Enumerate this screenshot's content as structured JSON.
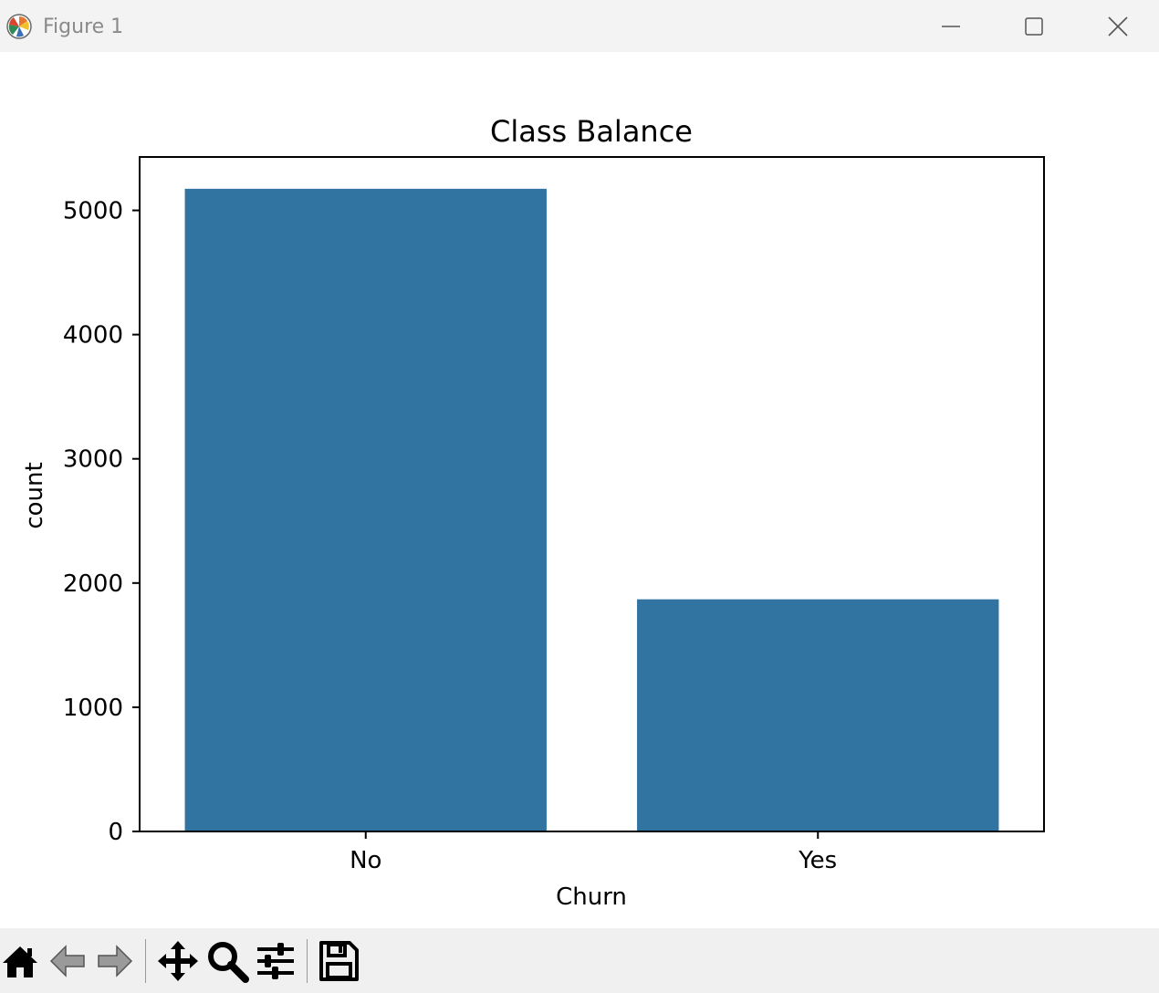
{
  "window": {
    "title": "Figure 1"
  },
  "toolbar": {
    "tools": [
      "home-icon",
      "back-arrow-icon",
      "forward-arrow-icon",
      "pan-icon",
      "zoom-icon",
      "configure-subplots-icon",
      "save-icon"
    ]
  },
  "colors": {
    "bar": "#3274a1",
    "titlebar": "#f3f3f3",
    "toolbar": "#f0f0f0"
  },
  "chart_data": {
    "type": "bar",
    "title": "Class Balance",
    "xlabel": "Churn",
    "ylabel": "count",
    "categories": [
      "No",
      "Yes"
    ],
    "values": [
      5174,
      1869
    ],
    "ylim": [
      0,
      5430
    ],
    "yticks": [
      0,
      1000,
      2000,
      3000,
      4000,
      5000
    ],
    "ytick_labels": [
      "0",
      "1000",
      "2000",
      "3000",
      "4000",
      "5000"
    ],
    "grid": false,
    "legend": false
  }
}
